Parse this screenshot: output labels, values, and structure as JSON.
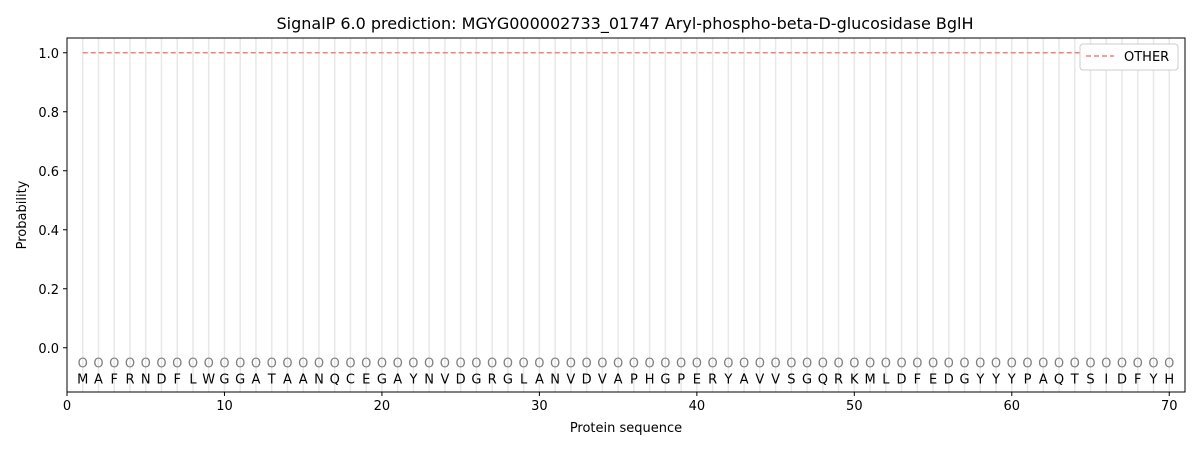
{
  "chart_data": {
    "type": "line",
    "title": "SignalP 6.0 prediction: MGYG000002733_01747 Aryl-phospho-beta-D-glucosidase BglH",
    "xlabel": "Protein sequence",
    "ylabel": "Probability",
    "xlim": [
      0,
      71
    ],
    "ylim": [
      -0.15,
      1.05
    ],
    "xticks": [
      0,
      10,
      20,
      30,
      40,
      50,
      60,
      70
    ],
    "yticks": [
      0.0,
      0.2,
      0.4,
      0.6,
      0.8,
      1.0
    ],
    "ytick_labels": [
      "0.0",
      "0.2",
      "0.4",
      "0.6",
      "0.8",
      "1.0"
    ],
    "grid": "vertical lines at each residue",
    "legend_position": "top-right",
    "sequence": [
      "M",
      "A",
      "F",
      "R",
      "N",
      "D",
      "F",
      "L",
      "W",
      "G",
      "G",
      "A",
      "T",
      "A",
      "A",
      "N",
      "Q",
      "C",
      "E",
      "G",
      "A",
      "Y",
      "N",
      "V",
      "D",
      "G",
      "R",
      "G",
      "L",
      "A",
      "N",
      "V",
      "D",
      "V",
      "A",
      "P",
      "H",
      "G",
      "P",
      "E",
      "R",
      "Y",
      "A",
      "V",
      "V",
      "S",
      "G",
      "Q",
      "R",
      "K",
      "M",
      "L",
      "D",
      "F",
      "E",
      "D",
      "G",
      "Y",
      "Y",
      "Y",
      "P",
      "A",
      "Q",
      "T",
      "S",
      "I",
      "D",
      "F",
      "Y",
      "H"
    ],
    "predicted_labels": "OOOOOOOOOOOOOOOOOOOOOOOOOOOOOOOOOOOOOOOOOOOOOOOOOOOOOOOOOOOOOOOOOOOOOO",
    "series": [
      {
        "name": "OTHER",
        "color": "#f08080",
        "style": "dashed",
        "x_range": [
          1,
          70
        ],
        "value": 1.0
      }
    ]
  }
}
